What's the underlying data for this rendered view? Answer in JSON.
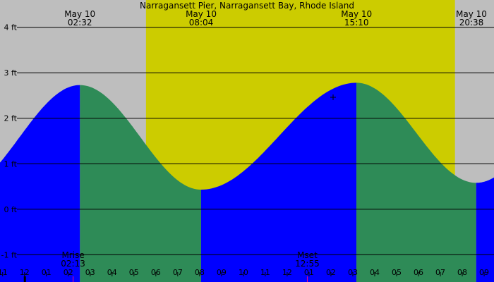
{
  "chart_data": {
    "type": "area",
    "title": "Narragansett Pier, Narragansett Bay, Rhode Island",
    "y_unit": "ft",
    "ylim": [
      -1.6,
      4.6
    ],
    "y_ticks": [
      {
        "value": 4,
        "label": "4 ft"
      },
      {
        "value": 3,
        "label": "3 ft"
      },
      {
        "value": 2,
        "label": "2 ft"
      },
      {
        "value": 1,
        "label": "1 ft"
      },
      {
        "value": 0,
        "label": "0 ft"
      },
      {
        "value": -1,
        "label": "-1 ft"
      }
    ],
    "x_range_hours": [
      -1.12,
      21.45
    ],
    "x_tick_labels": [
      "11",
      "12",
      "01",
      "02",
      "03",
      "04",
      "05",
      "06",
      "07",
      "08",
      "09",
      "10",
      "11",
      "12",
      "01",
      "02",
      "03",
      "04",
      "05",
      "06",
      "07",
      "08",
      "09"
    ],
    "x_tick_hours": [
      -1,
      0,
      1,
      2,
      3,
      4,
      5,
      6,
      7,
      8,
      9,
      10,
      11,
      12,
      13,
      14,
      15,
      16,
      17,
      18,
      19,
      20,
      21
    ],
    "daylight": {
      "sunrise": "05:33",
      "sunset": "19:40"
    },
    "top_labels": [
      {
        "date": "May 10",
        "time": "02:32",
        "hour": 2.53
      },
      {
        "date": "May 10",
        "time": "08:04",
        "hour": 8.07
      },
      {
        "date": "May 10",
        "time": "15:10",
        "hour": 15.17
      },
      {
        "date": "May 10",
        "time": "20:38",
        "hour": 20.63
      }
    ],
    "tide_extremes": [
      {
        "time": "02:32",
        "type": "high",
        "height_ft": 2.73
      },
      {
        "time": "08:04",
        "type": "low",
        "height_ft": 0.43
      },
      {
        "time": "15:10",
        "type": "high",
        "height_ft": 2.78
      },
      {
        "time": "20:38",
        "type": "low",
        "height_ft": 0.58
      }
    ],
    "start_height_ft": 1.35,
    "end_height_ft": 0.72,
    "moon_events": [
      {
        "label": "Mrise",
        "time": "02:13",
        "hour": 2.22
      },
      {
        "label": "Mset",
        "time": "12:55",
        "hour": 12.92
      }
    ],
    "colors": {
      "night": "#bebebe",
      "day": "#cccc00",
      "rising": "#0000ff",
      "falling": "#2e8b57",
      "grid": "#000000",
      "moon_tick": "#ff0080"
    }
  }
}
